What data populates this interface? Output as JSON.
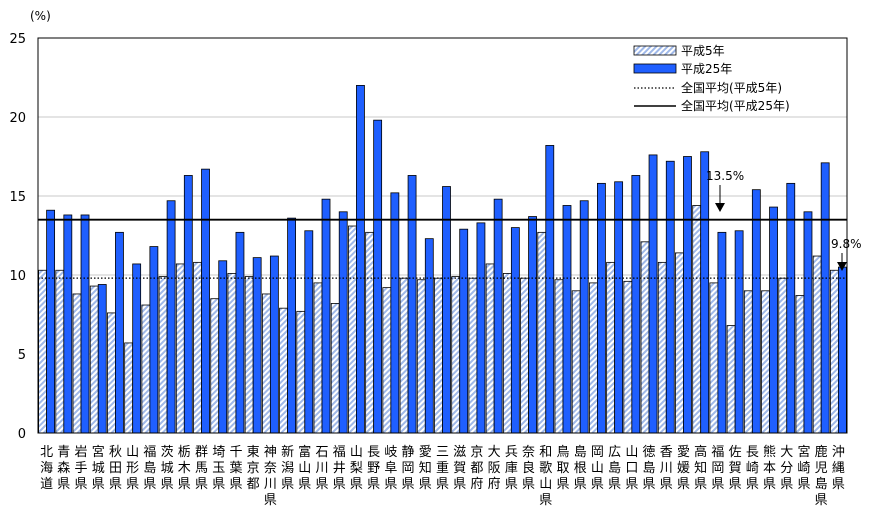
{
  "chart_data": {
    "type": "bar",
    "unit_label": "(%)",
    "ylim": [
      0,
      25
    ],
    "yticks": [
      0,
      5,
      10,
      15,
      20,
      25
    ],
    "grid": true,
    "legend_position": "top-right",
    "categories": [
      "北海道",
      "青森県",
      "岩手県",
      "宮城県",
      "秋田県",
      "山形県",
      "福島県",
      "茨城県",
      "栃木県",
      "群馬県",
      "埼玉県",
      "千葉県",
      "東京都",
      "神奈川県",
      "新潟県",
      "富山県",
      "石川県",
      "福井県",
      "山梨県",
      "長野県",
      "岐阜県",
      "静岡県",
      "愛知県",
      "三重県",
      "滋賀県",
      "京都府",
      "大阪府",
      "兵庫県",
      "奈良県",
      "和歌山県",
      "鳥取県",
      "島根県",
      "岡山県",
      "広島県",
      "山口県",
      "徳島県",
      "香川県",
      "愛媛県",
      "高知県",
      "福岡県",
      "佐賀県",
      "長崎県",
      "熊本県",
      "大分県",
      "宮崎県",
      "鹿児島県",
      "沖縄県"
    ],
    "series": [
      {
        "name": "平成5年",
        "pattern": "hatched",
        "color": "#9fb8e8",
        "values": [
          10.3,
          10.3,
          8.8,
          9.3,
          7.6,
          5.7,
          8.1,
          9.9,
          10.7,
          10.8,
          8.5,
          10.1,
          9.9,
          8.8,
          7.9,
          7.7,
          9.5,
          8.2,
          13.1,
          12.7,
          9.2,
          9.8,
          9.7,
          9.8,
          9.9,
          9.8,
          10.7,
          10.1,
          9.8,
          12.7,
          9.7,
          9.0,
          9.5,
          10.8,
          9.6,
          12.1,
          10.8,
          11.4,
          14.4,
          9.5,
          6.8,
          9.0,
          9.0,
          9.8,
          8.7,
          11.2,
          10.3
        ]
      },
      {
        "name": "平成25年",
        "pattern": "solid",
        "color": "#1f5fff",
        "values": [
          14.1,
          13.8,
          13.8,
          9.4,
          12.7,
          10.7,
          11.8,
          14.7,
          16.3,
          16.7,
          10.9,
          12.7,
          11.1,
          11.2,
          13.6,
          12.8,
          14.8,
          14.0,
          22.0,
          19.8,
          15.2,
          16.3,
          12.3,
          15.6,
          12.9,
          13.3,
          14.8,
          13.0,
          13.7,
          18.2,
          14.4,
          14.7,
          15.8,
          15.9,
          16.3,
          17.6,
          17.2,
          17.5,
          17.8,
          12.7,
          12.8,
          15.4,
          14.3,
          15.8,
          14.0,
          17.1,
          10.5
        ]
      }
    ],
    "reference_lines": [
      {
        "name": "全国平均(平成5年)",
        "value": 9.8,
        "style": "dotted",
        "label": "9.8%"
      },
      {
        "name": "全国平均(平成25年)",
        "value": 13.5,
        "style": "solid",
        "label": "13.5%"
      }
    ]
  }
}
